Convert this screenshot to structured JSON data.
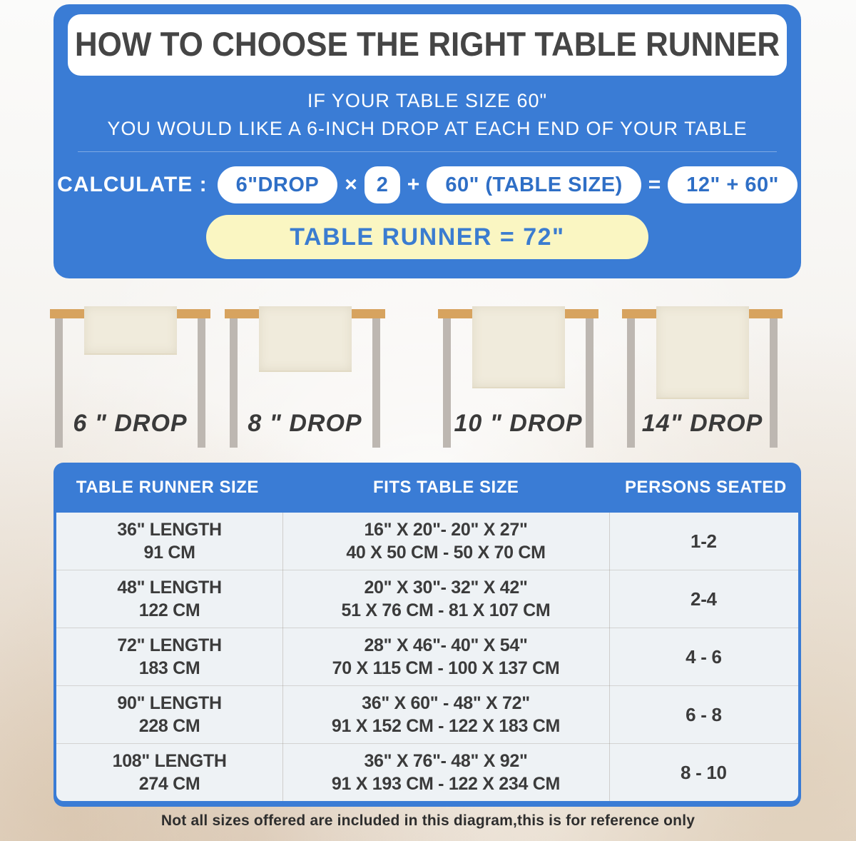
{
  "hero": {
    "title": "HOW TO CHOOSE THE RIGHT TABLE RUNNER",
    "subtitle_line1": "IF YOUR TABLE SIZE 60\"",
    "subtitle_line2": "YOU WOULD LIKE A 6-INCH DROP AT EACH END OF YOUR TABLE",
    "calculate_label": "CALCULATE :",
    "drop_pill": "6\"DROP",
    "times_sign": "×",
    "factor": "2",
    "plus_sign": "+",
    "table_size_pill": "60\" (TABLE SIZE)",
    "equals_sign": "=",
    "result_pill": "12\" + 60\"",
    "result_banner": "TABLE RUNNER = 72\""
  },
  "illustrations": [
    {
      "label": "6 \" DROP"
    },
    {
      "label": "8 \" DROP"
    },
    {
      "label": "10 \" DROP"
    },
    {
      "label": "14\" DROP"
    }
  ],
  "size_table": {
    "headers": [
      "TABLE RUNNER SIZE",
      "FITS TABLE SIZE",
      "PERSONS SEATED"
    ],
    "rows": [
      {
        "size_in": "36\" LENGTH",
        "size_cm": "91 CM",
        "fits_in": "16\" X 20\"- 20\" X 27\"",
        "fits_cm": "40 X 50 CM - 50 X 70 CM",
        "persons": "1-2"
      },
      {
        "size_in": "48\" LENGTH",
        "size_cm": "122 CM",
        "fits_in": "20\" X 30\"- 32\" X 42\"",
        "fits_cm": "51 X 76 CM - 81 X 107 CM",
        "persons": "2-4"
      },
      {
        "size_in": "72\" LENGTH",
        "size_cm": "183 CM",
        "fits_in": "28\" X 46\"- 40\" X 54\"",
        "fits_cm": "70 X 115 CM - 100 X 137 CM",
        "persons": "4 - 6"
      },
      {
        "size_in": "90\" LENGTH",
        "size_cm": "228 CM",
        "fits_in": "36\" X 60\" - 48\" X 72\"",
        "fits_cm": "91 X 152 CM - 122 X 183 CM",
        "persons": "6 - 8"
      },
      {
        "size_in": "108\" LENGTH",
        "size_cm": "274 CM",
        "fits_in": "36\" X 76\"- 48\" X 92\"",
        "fits_cm": "91 X 193 CM - 122 X 234 CM",
        "persons": "8 - 10"
      }
    ]
  },
  "footer": {
    "note": "Not all sizes offered are included in this diagram,this is for reference only"
  },
  "colors": {
    "brand_blue": "#3A7CD5",
    "pill_text_blue": "#2F6FC6",
    "result_yellow": "#FAF6C2",
    "tabletop_wood": "#D7A35F",
    "leg_gray": "#BDB7B1",
    "runner_cream": "#F0EBDC",
    "title_dark": "#454545"
  }
}
